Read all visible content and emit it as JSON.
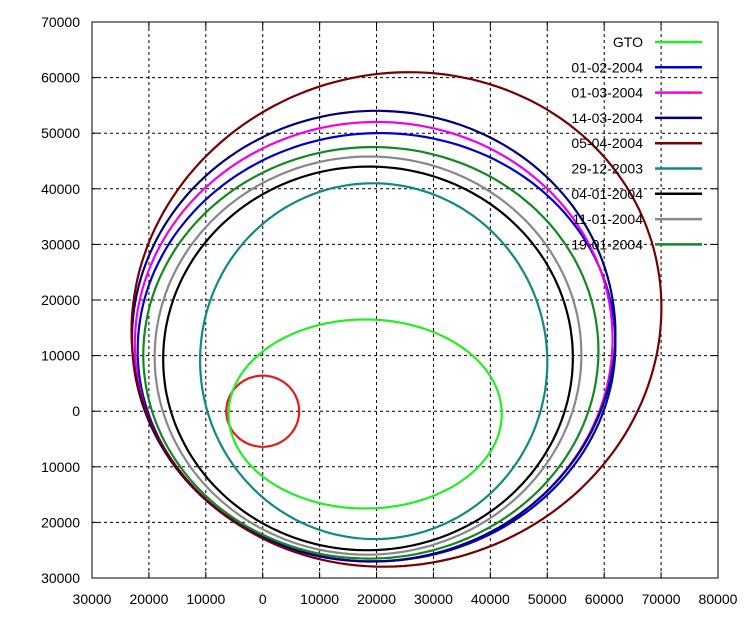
{
  "chart_data": {
    "type": "line",
    "title": "",
    "xlabel": "",
    "ylabel": "",
    "xlim": [
      -30000,
      80000
    ],
    "ylim": [
      -30000,
      70000
    ],
    "xticks": [
      -30000,
      -20000,
      -10000,
      0,
      10000,
      20000,
      30000,
      40000,
      50000,
      60000,
      70000,
      80000
    ],
    "yticks": [
      -30000,
      -20000,
      -10000,
      0,
      10000,
      20000,
      30000,
      40000,
      50000,
      60000,
      70000
    ],
    "xtick_labels": [
      "30000",
      "20000",
      "10000",
      "0",
      "10000",
      "20000",
      "30000",
      "40000",
      "50000",
      "60000",
      "70000",
      "80000"
    ],
    "ytick_labels": [
      "30000",
      "20000",
      "10000",
      "0",
      "10000",
      "20000",
      "30000",
      "40000",
      "50000",
      "60000",
      "70000"
    ],
    "grid": true,
    "legend_position": "top-right",
    "reference_circle": {
      "center": [
        0,
        0
      ],
      "radius": 6400,
      "color": "#e41a1c"
    },
    "series": [
      {
        "name": "GTO",
        "color": "#22ee22",
        "center": [
          18000,
          -500
        ],
        "rx": 24000,
        "ry": 17000,
        "tilt": 0
      },
      {
        "name": "01-02-2004",
        "color": "#0000cc",
        "center": [
          20000,
          11500
        ],
        "rx": 42000,
        "ry": 38500,
        "tilt": 0.08
      },
      {
        "name": "01-03-2004",
        "color": "#ee00ee",
        "center": [
          19500,
          12500
        ],
        "rx": 42000,
        "ry": 39500,
        "tilt": 0.1
      },
      {
        "name": "14-03-2004",
        "color": "#000077",
        "center": [
          19500,
          13500
        ],
        "rx": 42500,
        "ry": 40500,
        "tilt": 0.12
      },
      {
        "name": "05-04-2004",
        "color": "#770000",
        "center": [
          23500,
          16500
        ],
        "rx": 47000,
        "ry": 44000,
        "tilt": 0.4
      },
      {
        "name": "29-12-2003",
        "color": "#118888",
        "center": [
          19500,
          9000
        ],
        "rx": 30500,
        "ry": 32000,
        "tilt": 0.05
      },
      {
        "name": "04-01-2004",
        "color": "#000000",
        "center": [
          18500,
          9500
        ],
        "rx": 36000,
        "ry": 34500,
        "tilt": 0.05
      },
      {
        "name": "11-01-2004",
        "color": "#888888",
        "center": [
          18500,
          10000
        ],
        "rx": 37500,
        "ry": 35800,
        "tilt": 0.06
      },
      {
        "name": "19-01-2004",
        "color": "#118822",
        "center": [
          19000,
          10500
        ],
        "rx": 40000,
        "ry": 37000,
        "tilt": 0.06
      }
    ]
  }
}
